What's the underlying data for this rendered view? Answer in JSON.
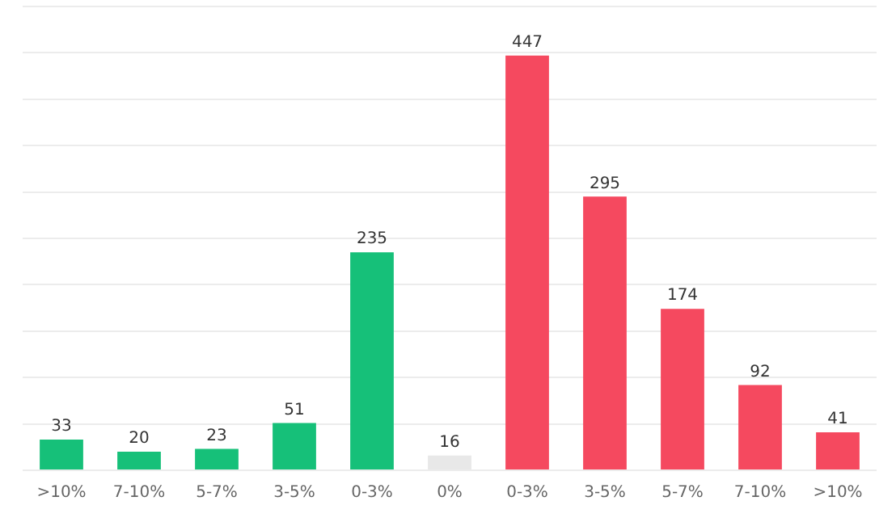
{
  "chart_data": {
    "type": "bar",
    "categories": [
      ">10%",
      "7-10%",
      "5-7%",
      "3-5%",
      "0-3%",
      "0%",
      "0-3%",
      "3-5%",
      "5-7%",
      "7-10%",
      ">10%"
    ],
    "values": [
      33,
      20,
      23,
      51,
      235,
      16,
      447,
      295,
      174,
      92,
      41
    ],
    "colors": [
      "#16c079",
      "#16c079",
      "#16c079",
      "#16c079",
      "#16c079",
      "#e8e8e8",
      "#f5495f",
      "#f5495f",
      "#f5495f",
      "#f5495f",
      "#f5495f"
    ],
    "ylim": [
      0,
      500
    ],
    "yticks": [
      {
        "value": 0,
        "label": null
      },
      {
        "value": 50,
        "label": null
      },
      {
        "value": 100,
        "label": null
      },
      {
        "value": 150,
        "label": null
      },
      {
        "value": 200,
        "label": null
      },
      {
        "value": 250,
        "label": null
      },
      {
        "value": 300,
        "label": null
      },
      {
        "value": 350,
        "label": null
      },
      {
        "value": 400,
        "label": null
      },
      {
        "value": 450,
        "label": null
      },
      {
        "value": 500,
        "label": null
      }
    ],
    "grid": "y",
    "tick_labels": "x",
    "data_labels": true,
    "legend": false
  }
}
